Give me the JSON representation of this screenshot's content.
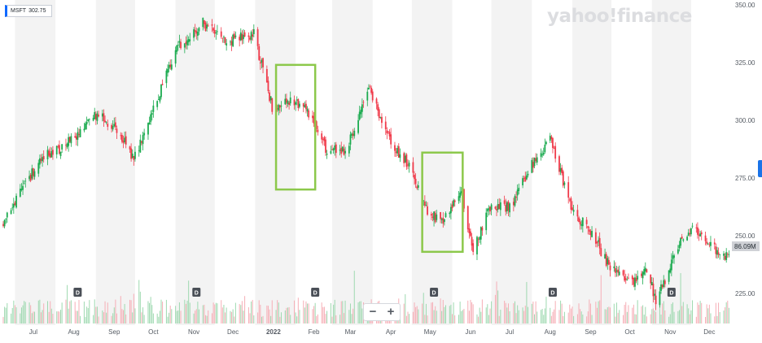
{
  "ticker": {
    "symbol": "MSFT",
    "price": "302.75"
  },
  "logo": {
    "text": "yahoo!finance"
  },
  "zoom": {
    "minus": "−",
    "plus": "+"
  },
  "volume_badge": "86.09M",
  "colors": {
    "up": "#1cab50",
    "down": "#f03a4a",
    "box": "#8cc84b",
    "band": "#f3f3f3",
    "volume_up": "#9ed9b0",
    "volume_down": "#f6aeb6",
    "axis_text": "#555b63",
    "logo": "#dcdde0",
    "accent": "#0f69ff"
  },
  "chart_data": {
    "type": "candlestick",
    "title": "",
    "ylim": [
      213,
      350
    ],
    "y_ticks": [
      "350.00",
      "325.00",
      "300.00",
      "275.00",
      "250.00",
      "225.00"
    ],
    "x_ticks": [
      "Jul",
      "Aug",
      "Sep",
      "Oct",
      "Nov",
      "Dec",
      "2022",
      "Feb",
      "Mar",
      "Apr",
      "May",
      "Jun",
      "Jul",
      "Aug",
      "Sep",
      "Oct",
      "Nov",
      "Dec"
    ],
    "x_range": [
      "2021-06-22",
      "2022-12-31"
    ],
    "price_path": [
      [
        "2021-06-22",
        256
      ],
      [
        "2021-07-06",
        269
      ],
      [
        "2021-07-20",
        283
      ],
      [
        "2021-08-02",
        287
      ],
      [
        "2021-08-16",
        293
      ],
      [
        "2021-08-30",
        303
      ],
      [
        "2021-09-15",
        298
      ],
      [
        "2021-09-30",
        283
      ],
      [
        "2021-10-15",
        304
      ],
      [
        "2021-11-01",
        331
      ],
      [
        "2021-11-22",
        342
      ],
      [
        "2021-12-10",
        334
      ],
      [
        "2021-12-31",
        337
      ],
      [
        "2022-01-14",
        306
      ],
      [
        "2022-01-28",
        308
      ],
      [
        "2022-02-09",
        305
      ],
      [
        "2022-02-24",
        288
      ],
      [
        "2022-03-10",
        286
      ],
      [
        "2022-03-30",
        313
      ],
      [
        "2022-04-15",
        290
      ],
      [
        "2022-04-29",
        280
      ],
      [
        "2022-05-12",
        262
      ],
      [
        "2022-05-25",
        255
      ],
      [
        "2022-06-08",
        271
      ],
      [
        "2022-06-16",
        244
      ],
      [
        "2022-06-30",
        262
      ],
      [
        "2022-07-15",
        262
      ],
      [
        "2022-08-01",
        281
      ],
      [
        "2022-08-15",
        292
      ],
      [
        "2022-08-31",
        262
      ],
      [
        "2022-09-15",
        252
      ],
      [
        "2022-09-30",
        236
      ],
      [
        "2022-10-14",
        229
      ],
      [
        "2022-10-28",
        236
      ],
      [
        "2022-11-04",
        221
      ],
      [
        "2022-11-18",
        242
      ],
      [
        "2022-12-01",
        254
      ],
      [
        "2022-12-20",
        244
      ],
      [
        "2022-12-31",
        241
      ]
    ],
    "dividend_markers": [
      "2021-08-18",
      "2021-11-17",
      "2022-02-16",
      "2022-05-18",
      "2022-08-17",
      "2022-11-16"
    ],
    "dividend_label": "D",
    "highlight_boxes": [
      {
        "from": "2022-01-17",
        "to": "2022-02-16",
        "low": 270,
        "high": 324
      },
      {
        "from": "2022-05-09",
        "to": "2022-06-09",
        "low": 243,
        "high": 286
      }
    ]
  }
}
